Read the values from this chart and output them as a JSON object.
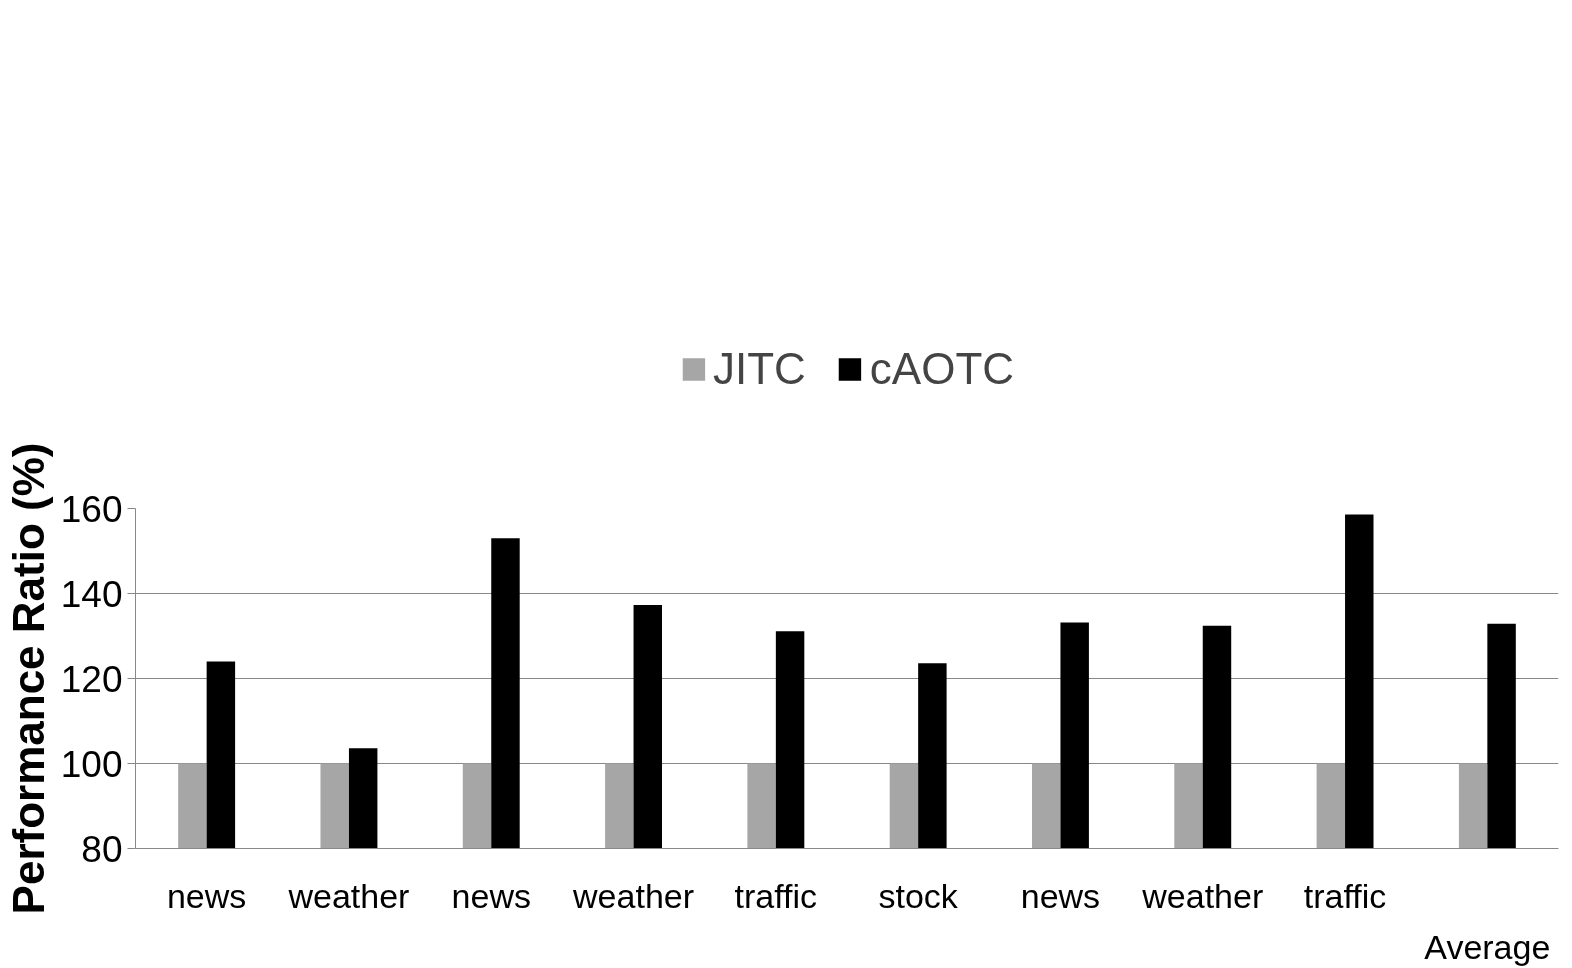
{
  "chart_data": {
    "type": "bar",
    "ylabel": "Performance Ratio (%)",
    "categories": [
      "news",
      "weather",
      "news",
      "weather",
      "traffic",
      "stock",
      "news",
      "weather",
      "traffic",
      null
    ],
    "series": [
      {
        "name": "JITC",
        "color": "#a6a6a6",
        "values": [
          100,
          100,
          100,
          100,
          100,
          100,
          100,
          100,
          100,
          100
        ]
      },
      {
        "name": "cAOTC",
        "color": "#000000",
        "values": [
          124,
          103.6,
          153,
          137.3,
          131.1,
          123.6,
          133.2,
          132.4,
          158.6,
          132.9
        ]
      }
    ],
    "ylim": [
      80,
      160
    ],
    "yticks": [
      80,
      100,
      120,
      140,
      160
    ],
    "grid": "y",
    "legend": "top",
    "annotations": [
      "Average"
    ]
  }
}
